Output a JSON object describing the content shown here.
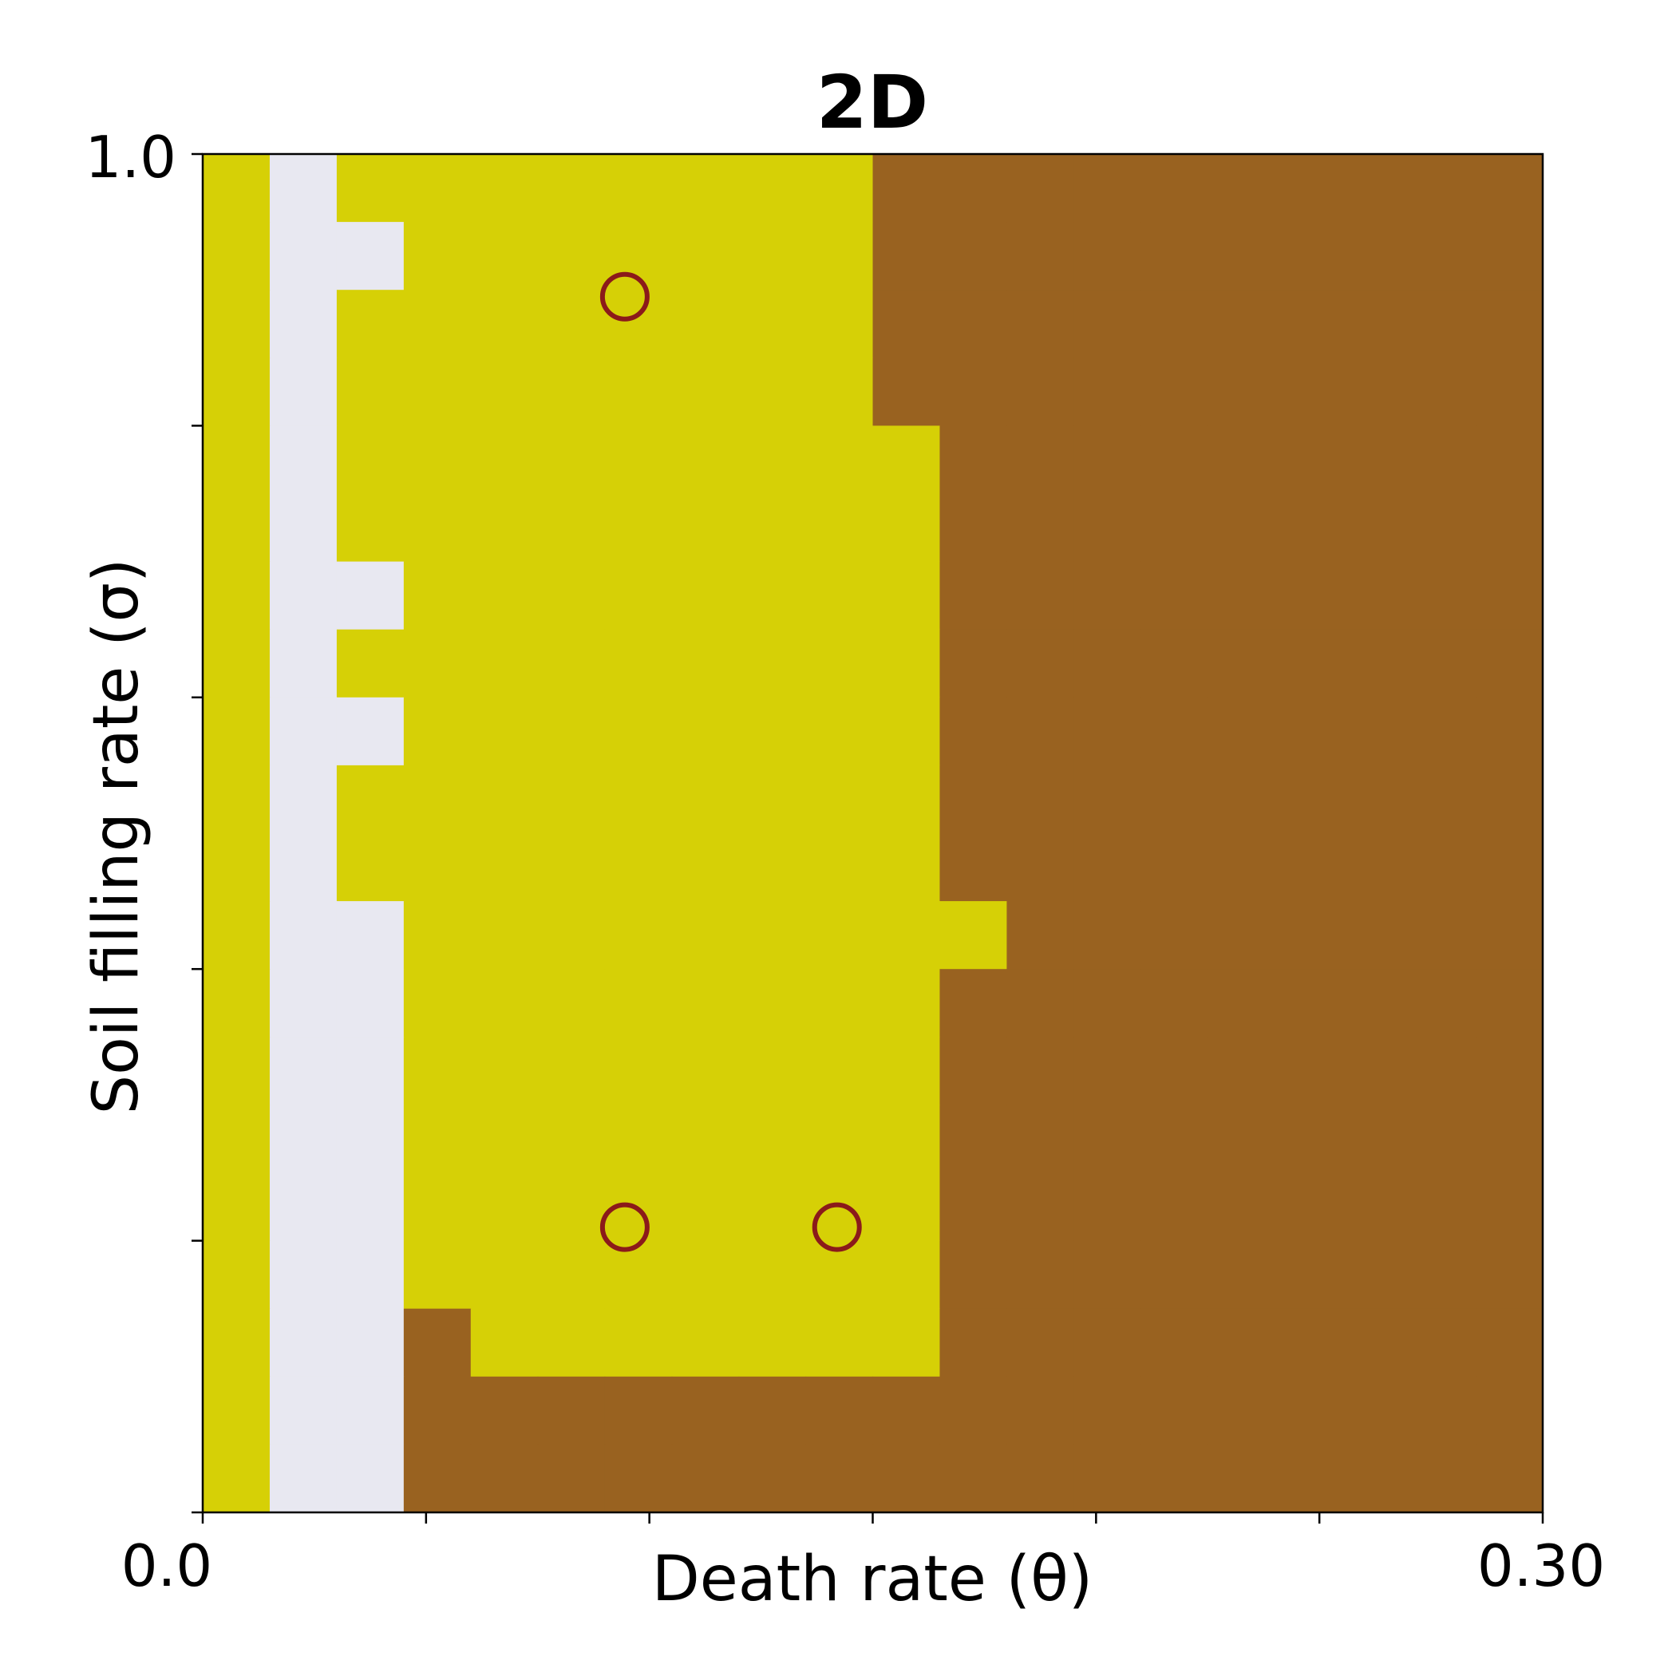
{
  "chart_data": {
    "type": "heatmap",
    "title": "2D",
    "xlabel": "Death rate (θ)",
    "ylabel": "Soil filling rate (σ)",
    "xlim": [
      0.0,
      0.3
    ],
    "ylim": [
      0.0,
      1.0
    ],
    "x_tick_labels": [
      "0.0",
      "0.30"
    ],
    "y_tick_labels": [
      "0.0",
      "1.0"
    ],
    "x_ticks_minor": [
      0.0,
      0.05,
      0.1,
      0.15,
      0.2,
      0.25,
      0.3
    ],
    "y_ticks_minor": [
      0.0,
      0.2,
      0.4,
      0.6,
      0.8,
      1.0
    ],
    "grid": false,
    "legend": "none",
    "grid_shape": {
      "cols": 20,
      "rows": 20
    },
    "colors": {
      "Y": "#d6d006",
      "W": "#e8e8f1",
      "B": "#996220"
    },
    "cells": [
      "YWYYYYYYYYBBBBBBBBBB",
      "YWWYYYYYYYBBBBBBBBBB",
      "YWYYYYYYYYBBBBBBBBBB",
      "YWYYYYYYYYBBBBBBBBBB",
      "YWYYYYYYYYYBBBBBBBBB",
      "YWYYYYYYYYYBBBBBBBBB",
      "YWWYYYYYYYYBBBBBBBBB",
      "YWYYYYYYYYYBBBBBBBBB",
      "YWWYYYYYYYYBBBBBBBBB",
      "YWYYYYYYYYYBBBBBBBBB",
      "YWYYYYYYYYYBBBBBBBBB",
      "YWWYYYYYYYYYBBBBBBBB",
      "YWWYYYYYYYYBBBBBBBBB",
      "YWWYYYYYYYYBBBBBBBBB",
      "YWWYYYYYYYYBBBBBBBBB",
      "YWWYYYYYYYYBBBBBBBBB",
      "YWWYYYYYYYYBBBBBBBBB",
      "YWWBYYYYYYYBBBBBBBBB",
      "YWWBBBBBBBBBBBBBBBBB",
      "YWWBBBBBBBBBBBBBBBBB"
    ],
    "markers": [
      {
        "x": 0.0945,
        "y": 0.895,
        "edge_color": "#8b1a1a"
      },
      {
        "x": 0.0945,
        "y": 0.21,
        "edge_color": "#8b1a1a"
      },
      {
        "x": 0.142,
        "y": 0.21,
        "edge_color": "#8b1a1a"
      }
    ]
  }
}
